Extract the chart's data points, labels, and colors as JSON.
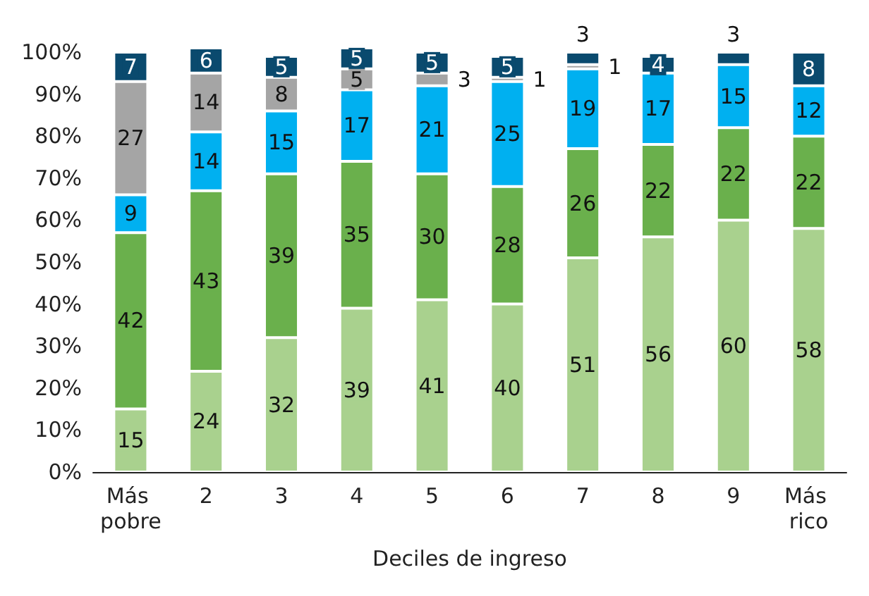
{
  "chart_data": {
    "type": "bar",
    "stacked": true,
    "xlabel": "Deciles de ingreso",
    "categories": [
      "Más pobre",
      "2",
      "3",
      "4",
      "5",
      "6",
      "7",
      "8",
      "9",
      "Más rico"
    ],
    "series": [
      {
        "color": "#a9d18e",
        "values": [
          15,
          24,
          32,
          39,
          41,
          40,
          51,
          56,
          60,
          58
        ]
      },
      {
        "color": "#6ab04c",
        "values": [
          42,
          43,
          39,
          35,
          30,
          28,
          26,
          22,
          22,
          22
        ]
      },
      {
        "color": "#00b0f0",
        "values": [
          9,
          14,
          15,
          17,
          21,
          25,
          19,
          17,
          15,
          12
        ]
      },
      {
        "color": "#a5a5a5",
        "values": [
          27,
          14,
          8,
          5,
          3,
          1,
          1,
          null,
          null,
          null
        ]
      },
      {
        "color": "#0a4a6e",
        "values": [
          7,
          6,
          5,
          5,
          5,
          5,
          3,
          4,
          3,
          8
        ]
      }
    ],
    "ylim": [
      0,
      101
    ],
    "yticks": [
      {
        "value": 0,
        "label": "0%"
      },
      {
        "value": 10,
        "label": "10%"
      },
      {
        "value": 20,
        "label": "20%"
      },
      {
        "value": 30,
        "label": "30%"
      },
      {
        "value": 40,
        "label": "40%"
      },
      {
        "value": 50,
        "label": "50%"
      },
      {
        "value": 60,
        "label": "60%"
      },
      {
        "value": 70,
        "label": "70%"
      },
      {
        "value": 80,
        "label": "80%"
      },
      {
        "value": 90,
        "label": "90%"
      },
      {
        "value": 100,
        "label": "100%"
      }
    ],
    "grid": false,
    "data_labels": true
  }
}
